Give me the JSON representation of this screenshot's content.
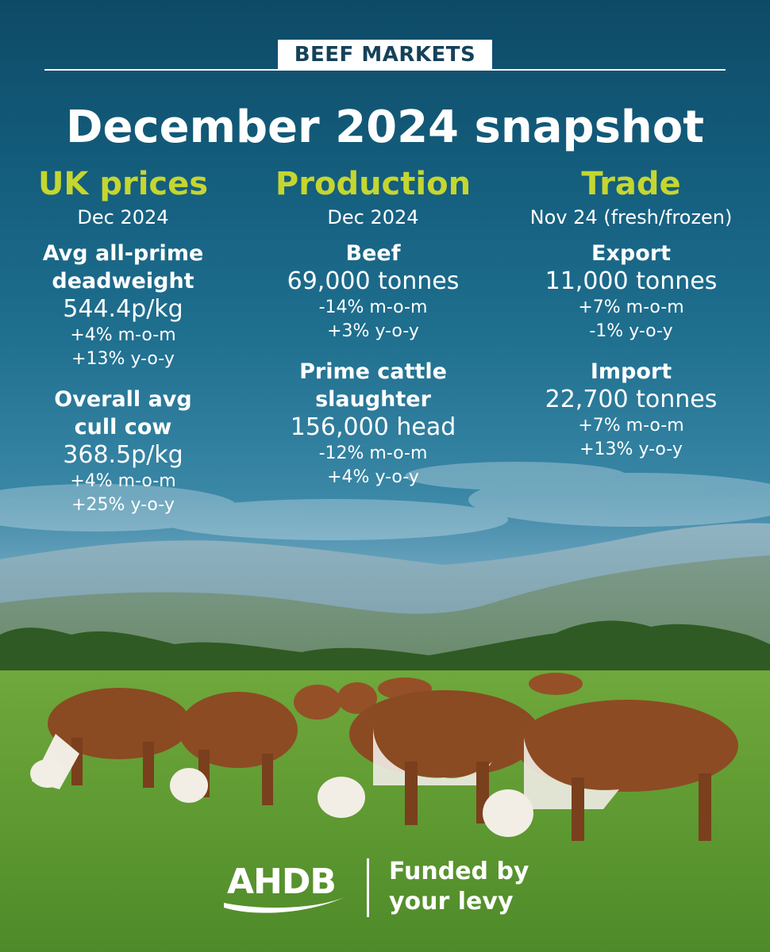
{
  "header": {
    "badge": "BEEF MARKETS",
    "title": "December 2024 snapshot"
  },
  "columns": {
    "prices": {
      "heading": "UK prices",
      "period": "Dec 2024",
      "metrics": [
        {
          "label_l1": "Avg all-prime",
          "label_l2": "deadweight",
          "value": "544.4p/kg",
          "mom": "+4% m-o-m",
          "yoy": "+13% y-o-y"
        },
        {
          "label_l1": "Overall avg",
          "label_l2": "cull cow",
          "value": "368.5p/kg",
          "mom": "+4% m-o-m",
          "yoy": "+25% y-o-y"
        }
      ]
    },
    "production": {
      "heading": "Production",
      "period": "Dec 2024",
      "metrics": [
        {
          "label_l1": "Beef",
          "value": "69,000 tonnes",
          "mom": "-14% m-o-m",
          "yoy": "+3% y-o-y"
        },
        {
          "label_l1": "Prime cattle",
          "label_l2": "slaughter",
          "value": "156,000 head",
          "mom": "-12% m-o-m",
          "yoy": "+4% y-o-y"
        }
      ]
    },
    "trade": {
      "heading": "Trade",
      "period": "Nov 24 (fresh/frozen)",
      "metrics": [
        {
          "label_l1": "Export",
          "value": "11,000 tonnes",
          "mom": "+7% m-o-m",
          "yoy": "-1% y-o-y"
        },
        {
          "label_l1": "Import",
          "value": "22,700 tonnes",
          "mom": "+7% m-o-m",
          "yoy": "+13% y-o-y"
        }
      ]
    }
  },
  "footer": {
    "logo": "AHDB",
    "tagline_l1": "Funded by",
    "tagline_l2": "your levy"
  },
  "colors": {
    "accent": "#c5d630",
    "sky_top": "#0d4a66",
    "grass": "#5f9a32",
    "badge_text": "#15425a"
  }
}
